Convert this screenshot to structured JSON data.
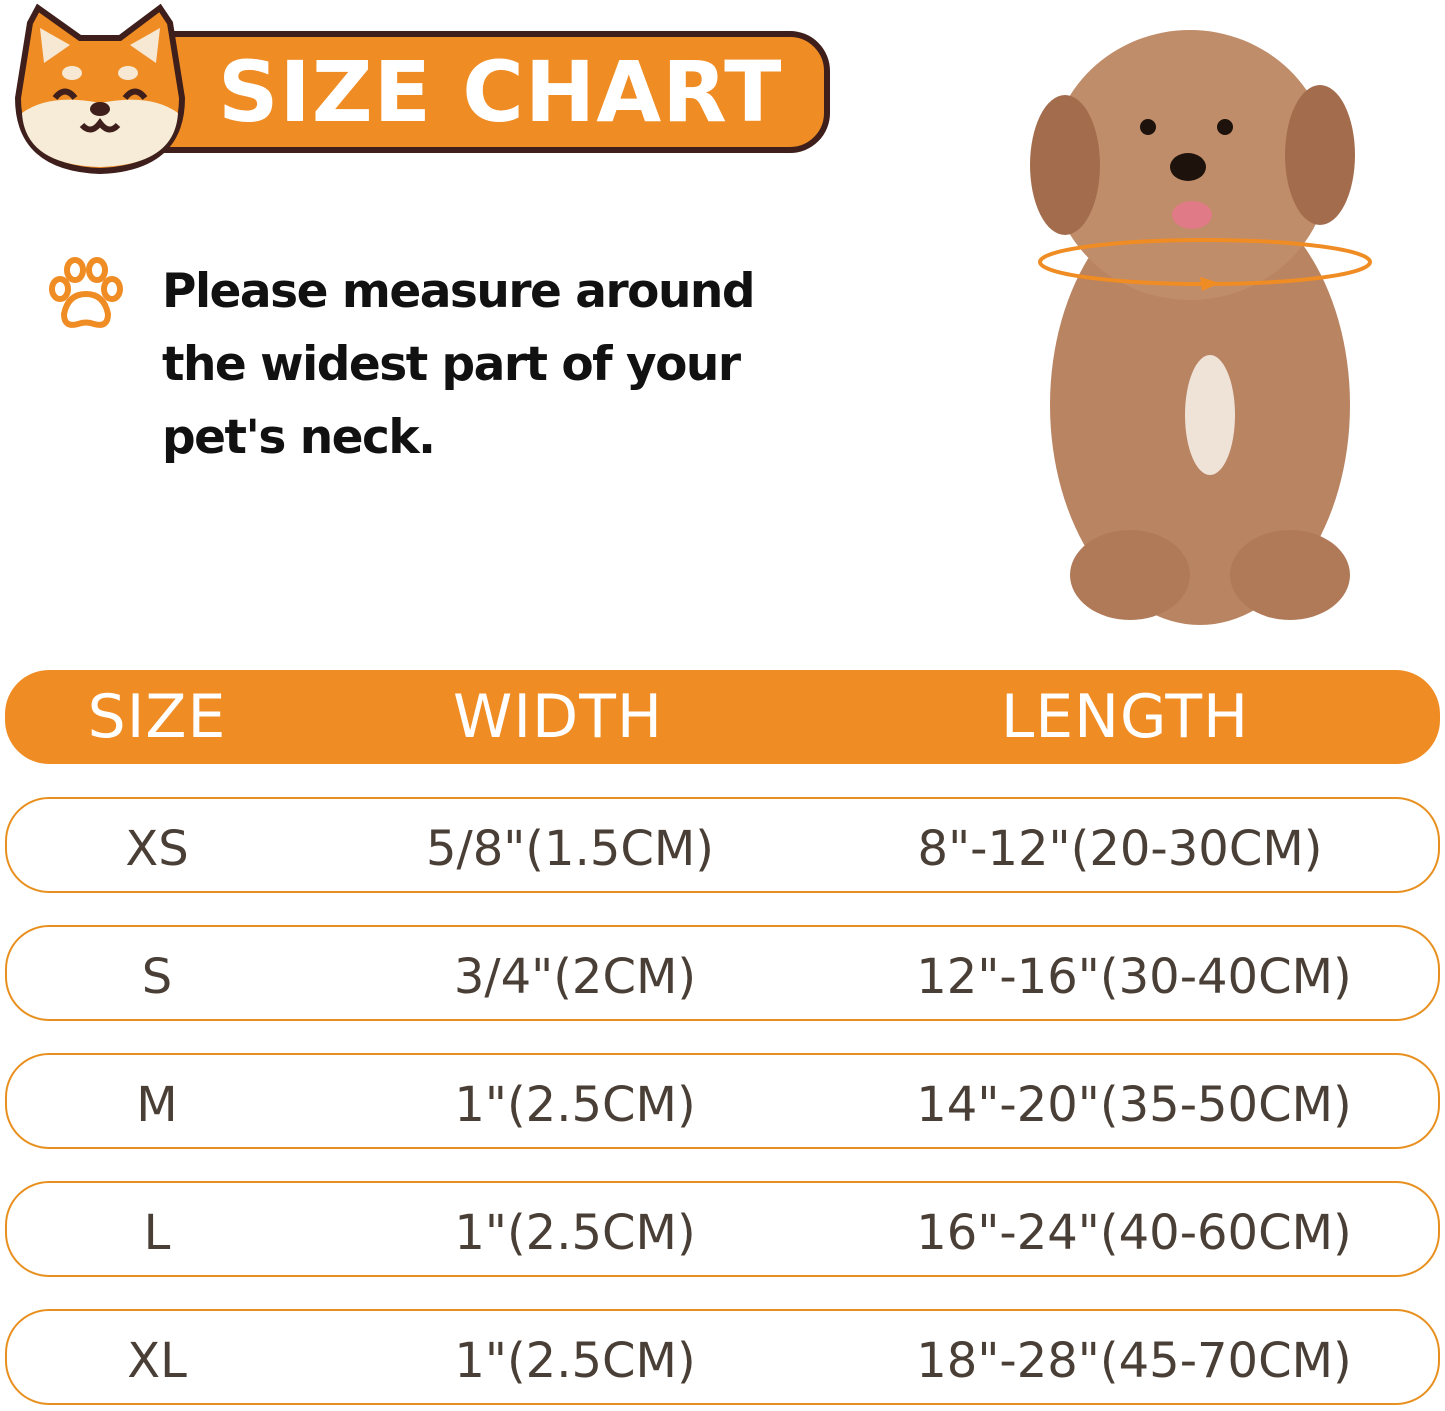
{
  "banner": {
    "title": "SIZE CHART"
  },
  "instruction": {
    "lines": [
      "Please measure around",
      "the widest part of your",
      "pet's neck."
    ]
  },
  "colors": {
    "accent": "#f08c24",
    "banner_border": "#3e1f1b",
    "row_text": "#4a3f36"
  },
  "table": {
    "headers": [
      "SIZE",
      "WIDTH",
      "LENGTH"
    ],
    "rows": [
      [
        "XS",
        "5/8\"(1.5CM)",
        "8\"-12\"(20-30CM)"
      ],
      [
        "S",
        "3/4\"(2CM)",
        "12\"-16\"(30-40CM)"
      ],
      [
        "M",
        "1\"(2.5CM)",
        "14\"-20\"(35-50CM)"
      ],
      [
        "L",
        "1\"(2.5CM)",
        "16\"-24\"(40-60CM)"
      ],
      [
        "XL",
        "1\"(2.5CM)",
        "18\"-28\"(45-70CM)"
      ]
    ]
  }
}
